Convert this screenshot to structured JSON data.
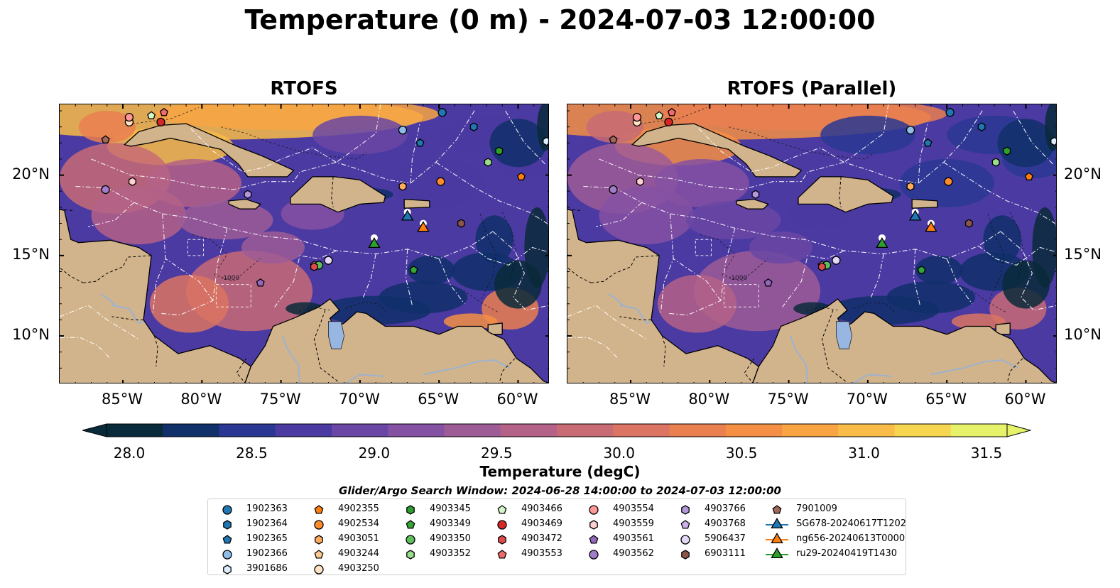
{
  "title": "Temperature (0 m) - 2024-07-03 12:00:00",
  "panels": [
    {
      "title": "RTOFS",
      "variant": "a"
    },
    {
      "title": "RTOFS (Parallel)",
      "variant": "b"
    }
  ],
  "map": {
    "lon_range": [
      -89.0,
      -58.0
    ],
    "lat_range": [
      7.0,
      24.4
    ],
    "x_ticks": [
      "85°W",
      "80°W",
      "75°W",
      "70°W",
      "65°W",
      "60°W"
    ],
    "x_tick_lons": [
      -85,
      -80,
      -75,
      -70,
      -65,
      -60
    ],
    "y_ticks": [
      "10°N",
      "15°N",
      "20°N"
    ],
    "y_tick_lats": [
      10,
      15,
      20
    ],
    "land_color": "#d2b48c",
    "lake_color": "#97b6e1",
    "contour_label": "-1000"
  },
  "colorbar": {
    "label": "Temperature (degC)",
    "range": [
      28.0,
      31.5
    ],
    "ticks": [
      "28.0",
      "28.5",
      "29.0",
      "29.5",
      "30.0",
      "30.5",
      "31.0",
      "31.5"
    ],
    "colors": [
      "#092a3a",
      "#10306a",
      "#2a3893",
      "#4a3aa1",
      "#6a46a5",
      "#8551a2",
      "#9e5c97",
      "#b46287",
      "#c86b75",
      "#db7462",
      "#ea7f50",
      "#f48f45",
      "#f8a443",
      "#f9bc48",
      "#f6d550",
      "#e6f36a"
    ]
  },
  "search_window": "Glider/Argo Search Window: 2024-06-28 14:00:00 to 2024-07-03 12:00:00",
  "legend": {
    "items": [
      {
        "label": "1902363",
        "marker": "circle",
        "color": "#1f77b4"
      },
      {
        "label": "1902364",
        "marker": "hexagon",
        "color": "#1f77b4"
      },
      {
        "label": "1902365",
        "marker": "pentagon",
        "color": "#1f77b4"
      },
      {
        "label": "1902366",
        "marker": "circle",
        "color": "#8fbde6"
      },
      {
        "label": "3901686",
        "marker": "hexagon",
        "color": "#ddeeff"
      },
      {
        "label": "4902355",
        "marker": "pentagon",
        "color": "#ff7f0e"
      },
      {
        "label": "4902534",
        "marker": "circle",
        "color": "#ff8c2a"
      },
      {
        "label": "4903051",
        "marker": "hexagon",
        "color": "#ffab5e"
      },
      {
        "label": "4903244",
        "marker": "pentagon",
        "color": "#ffc890"
      },
      {
        "label": "4903250",
        "marker": "circle",
        "color": "#ffe3c4"
      },
      {
        "label": "4903345",
        "marker": "hexagon",
        "color": "#2ca02c"
      },
      {
        "label": "4903349",
        "marker": "pentagon",
        "color": "#35a535"
      },
      {
        "label": "4903350",
        "marker": "circle",
        "color": "#5dc05d"
      },
      {
        "label": "4903352",
        "marker": "hexagon",
        "color": "#98df8a"
      },
      {
        "label": "4903466",
        "marker": "pentagon",
        "color": "#d4f7c8"
      },
      {
        "label": "4903469",
        "marker": "circle",
        "color": "#d62728"
      },
      {
        "label": "4903472",
        "marker": "hexagon",
        "color": "#e04a4a"
      },
      {
        "label": "4903553",
        "marker": "pentagon",
        "color": "#f06a6a"
      },
      {
        "label": "4903554",
        "marker": "circle",
        "color": "#ff9896"
      },
      {
        "label": "4903559",
        "marker": "hexagon",
        "color": "#ffd0cf"
      },
      {
        "label": "4903561",
        "marker": "pentagon",
        "color": "#9467bd"
      },
      {
        "label": "4903562",
        "marker": "circle",
        "color": "#a17cc9"
      },
      {
        "label": "4903766",
        "marker": "hexagon",
        "color": "#b597dc"
      },
      {
        "label": "4903768",
        "marker": "pentagon",
        "color": "#cbb3ea"
      },
      {
        "label": "5906437",
        "marker": "circle",
        "color": "#e4d6f6"
      },
      {
        "label": "6903111",
        "marker": "hexagon",
        "color": "#8c564b"
      },
      {
        "label": "7901009",
        "marker": "pentagon",
        "color": "#a0685a"
      },
      {
        "label": "SG678-20240617T1202",
        "marker": "triangle",
        "color": "#1f77b4"
      },
      {
        "label": "ng656-20240613T0000",
        "marker": "triangle",
        "color": "#ff7f0e"
      },
      {
        "label": "ru29-20240419T1430",
        "marker": "triangle",
        "color": "#2ca02c"
      }
    ]
  },
  "observations": [
    {
      "id": "1902363",
      "lon": -64.8,
      "lat": 23.9
    },
    {
      "id": "1902364",
      "lon": -62.8,
      "lat": 23.0
    },
    {
      "id": "1902365",
      "lon": -66.2,
      "lat": 22.0
    },
    {
      "id": "1902366",
      "lon": -67.3,
      "lat": 22.8
    },
    {
      "id": "3901686",
      "lon": -58.2,
      "lat": 22.1
    },
    {
      "id": "4902355",
      "lon": -59.8,
      "lat": 19.9
    },
    {
      "id": "4902534",
      "lon": -64.9,
      "lat": 19.6
    },
    {
      "id": "4903051",
      "lon": -67.3,
      "lat": 19.3
    },
    {
      "id": "4903244",
      "lon": -72.9,
      "lat": 14.4
    },
    {
      "id": "4903250",
      "lon": -84.6,
      "lat": 23.3
    },
    {
      "id": "4903345",
      "lon": -61.2,
      "lat": 21.5
    },
    {
      "id": "4903349",
      "lon": -66.6,
      "lat": 14.1
    },
    {
      "id": "4903350",
      "lon": -72.6,
      "lat": 14.4
    },
    {
      "id": "4903352",
      "lon": -61.9,
      "lat": 20.8
    },
    {
      "id": "4903466",
      "lon": -83.2,
      "lat": 23.7
    },
    {
      "id": "4903469",
      "lon": -82.6,
      "lat": 23.3
    },
    {
      "id": "4903472",
      "lon": -72.9,
      "lat": 14.3
    },
    {
      "id": "4903553",
      "lon": -82.4,
      "lat": 23.9
    },
    {
      "id": "4903554",
      "lon": -84.6,
      "lat": 23.6
    },
    {
      "id": "4903559",
      "lon": -84.4,
      "lat": 19.6
    },
    {
      "id": "4903561",
      "lon": -76.3,
      "lat": 13.3
    },
    {
      "id": "4903562",
      "lon": -86.1,
      "lat": 19.1
    },
    {
      "id": "4903766",
      "lon": -77.1,
      "lat": 18.8
    },
    {
      "id": "4903768",
      "lon": -72.0,
      "lat": 14.7
    },
    {
      "id": "5906437",
      "lon": -72.0,
      "lat": 14.7
    },
    {
      "id": "6903111",
      "lon": -63.6,
      "lat": 17.0
    },
    {
      "id": "7901009",
      "lon": -86.1,
      "lat": 22.2
    },
    {
      "id": "SG678-20240617T1202",
      "lon": -67.0,
      "lat": 17.4
    },
    {
      "id": "ng656-20240613T0000",
      "lon": -66.0,
      "lat": 16.7
    },
    {
      "id": "ru29-20240419T1430",
      "lon": -69.1,
      "lat": 15.7
    }
  ]
}
